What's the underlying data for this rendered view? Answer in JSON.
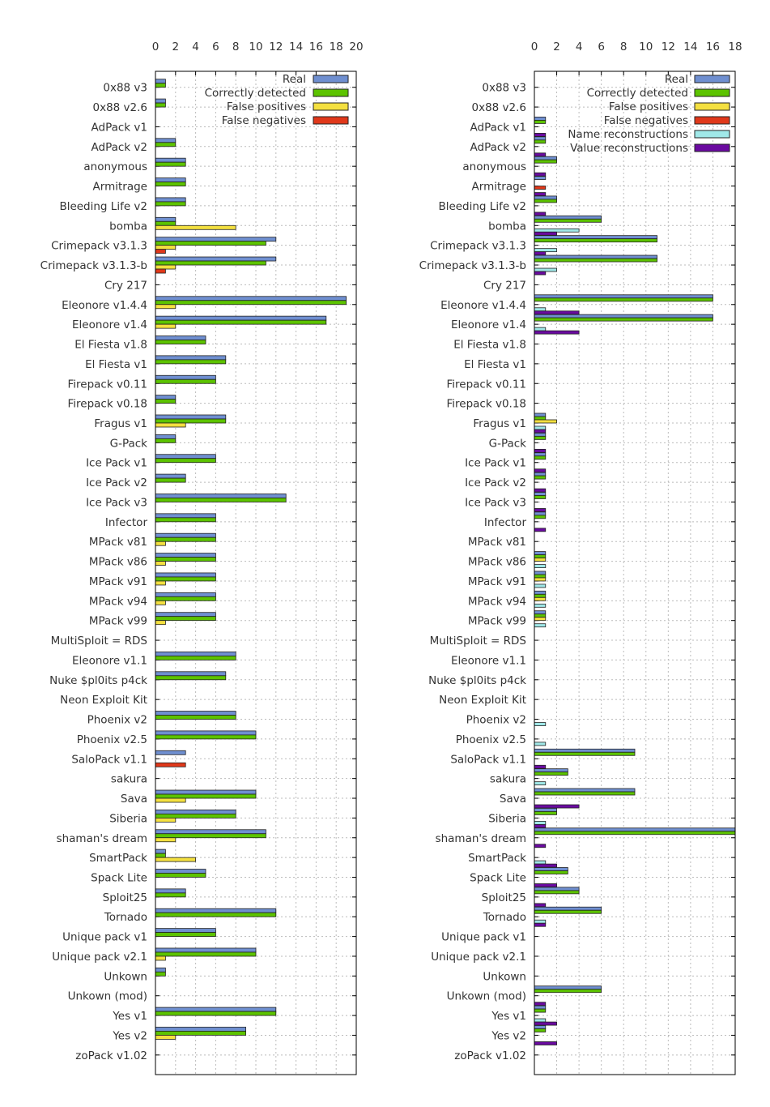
{
  "colors": {
    "real": "#6f8fd0",
    "correct": "#5cc300",
    "false_positive": "#f4e040",
    "false_negative": "#e0381a",
    "name_reconstruction": "#a0e8e8",
    "value_reconstruction": "#6a0aa0"
  },
  "chart_data": [
    {
      "type": "bar",
      "orientation": "horizontal",
      "xlim": [
        0,
        20
      ],
      "xticks": [
        "0",
        "2",
        "4",
        "6",
        "8",
        "10",
        "12",
        "14",
        "16",
        "18",
        "20"
      ],
      "grid": true,
      "legend_position": "top-right",
      "categories": [
        "0x88 v3",
        "0x88 v2.6",
        "AdPack v1",
        "AdPack v2",
        "anonymous",
        "Armitrage",
        "Bleeding Life v2",
        "bomba",
        "Crimepack v3.1.3",
        "Crimepack v3.1.3-b",
        "Cry 217",
        "Eleonore v1.4.4",
        "Eleonore v1.4",
        "El Fiesta v1.8",
        "El Fiesta v1",
        "Firepack v0.11",
        "Firepack v0.18",
        "Fragus v1",
        "G-Pack",
        "Ice Pack v1",
        "Ice Pack v2",
        "Ice Pack v3",
        "Infector",
        "MPack v81",
        "MPack v86",
        "MPack v91",
        "MPack v94",
        "MPack v99",
        "MultiSploit = RDS",
        "Eleonore v1.1",
        "Nuke $pl0its p4ck",
        "Neon Exploit Kit",
        "Phoenix v2",
        "Phoenix v2.5",
        "SaloPack v1.1",
        "sakura",
        "Sava",
        "Siberia",
        "shaman's dream",
        "SmartPack",
        "Spack Lite",
        "Sploit25",
        "Tornado",
        "Unique pack v1",
        "Unique pack  v2.1",
        "Unkown",
        "Unkown (mod)",
        "Yes v1",
        "Yes v2",
        "zoPack v1.02"
      ],
      "series": [
        {
          "name": "Real",
          "color_key": "real",
          "values": [
            1,
            1,
            0,
            2,
            3,
            3,
            3,
            2,
            12,
            12,
            0,
            19,
            17,
            5,
            7,
            6,
            2,
            7,
            2,
            6,
            3,
            13,
            6,
            6,
            6,
            6,
            6,
            6,
            0,
            8,
            7,
            0,
            8,
            10,
            3,
            0,
            10,
            8,
            11,
            1,
            5,
            3,
            12,
            6,
            10,
            1,
            0,
            12,
            9,
            0
          ]
        },
        {
          "name": "Correctly detected",
          "color_key": "correct",
          "values": [
            1,
            1,
            0,
            2,
            3,
            3,
            3,
            2,
            11,
            11,
            0,
            19,
            17,
            5,
            7,
            6,
            2,
            7,
            2,
            6,
            3,
            13,
            6,
            6,
            6,
            6,
            6,
            6,
            0,
            8,
            7,
            0,
            8,
            10,
            0,
            0,
            10,
            8,
            11,
            1,
            5,
            3,
            12,
            6,
            10,
            1,
            0,
            12,
            9,
            0
          ]
        },
        {
          "name": "False positives",
          "color_key": "false_positive",
          "values": [
            0,
            0,
            0,
            0,
            0,
            0,
            0,
            8,
            2,
            2,
            0,
            2,
            2,
            0,
            0,
            0,
            0,
            3,
            0,
            0,
            0,
            0,
            0,
            1,
            1,
            1,
            1,
            1,
            0,
            0,
            0,
            0,
            0,
            0,
            0,
            0,
            3,
            2,
            2,
            4,
            0,
            0,
            0,
            0,
            1,
            0,
            0,
            0,
            2,
            0
          ]
        },
        {
          "name": "False negatives",
          "color_key": "false_negative",
          "values": [
            0,
            0,
            0,
            0,
            0,
            0,
            0,
            0,
            1,
            1,
            0,
            0,
            0,
            0,
            0,
            0,
            0,
            0,
            0,
            0,
            0,
            0,
            0,
            0,
            0,
            0,
            0,
            0,
            0,
            0,
            0,
            0,
            0,
            0,
            3,
            0,
            0,
            0,
            0,
            0,
            0,
            0,
            0,
            0,
            0,
            0,
            0,
            0,
            0,
            0
          ]
        }
      ]
    },
    {
      "type": "bar",
      "orientation": "horizontal",
      "xlim": [
        0,
        18
      ],
      "xticks": [
        "0",
        "2",
        "4",
        "6",
        "8",
        "10",
        "12",
        "14",
        "16",
        "18"
      ],
      "grid": true,
      "legend_position": "top-right",
      "categories": [
        "0x88 v3",
        "0x88 v2.6",
        "AdPack v1",
        "AdPack v2",
        "anonymous",
        "Armitrage",
        "Bleeding Life v2",
        "bomba",
        "Crimepack v3.1.3",
        "Crimepack v3.1.3-b",
        "Cry 217",
        "Eleonore v1.4.4",
        "Eleonore v1.4",
        "El Fiesta v1.8",
        "El Fiesta v1",
        "Firepack v0.11",
        "Firepack v0.18",
        "Fragus v1",
        "G-Pack",
        "Ice Pack v1",
        "Ice Pack v2",
        "Ice Pack v3",
        "Infector",
        "MPack v81",
        "MPack v86",
        "MPack v91",
        "MPack v94",
        "MPack v99",
        "MultiSploit = RDS",
        "Eleonore v1.1",
        "Nuke $pl0its p4ck",
        "Neon Exploit Kit",
        "Phoenix v2",
        "Phoenix v2.5",
        "SaloPack v1.1",
        "sakura",
        "Sava",
        "Siberia",
        "shaman's dream",
        "SmartPack",
        "Spack Lite",
        "Sploit25",
        "Tornado",
        "Unique pack v1",
        "Unique pack  v2.1",
        "Unkown",
        "Unkown (mod)",
        "Yes v1",
        "Yes v2",
        "zoPack v1.02"
      ],
      "series": [
        {
          "name": "Real",
          "color_key": "real",
          "values": [
            0,
            0,
            1,
            1,
            2,
            1,
            2,
            6,
            11,
            11,
            0,
            16,
            16,
            0,
            0,
            0,
            0,
            1,
            1,
            1,
            1,
            1,
            1,
            0,
            1,
            1,
            1,
            1,
            0,
            0,
            0,
            0,
            0,
            0,
            9,
            3,
            9,
            2,
            18,
            0,
            3,
            4,
            6,
            0,
            0,
            0,
            6,
            1,
            1,
            0
          ]
        },
        {
          "name": "Correctly detected",
          "color_key": "correct",
          "values": [
            0,
            0,
            1,
            1,
            2,
            0,
            2,
            6,
            11,
            11,
            0,
            16,
            16,
            0,
            0,
            0,
            0,
            1,
            1,
            1,
            1,
            1,
            1,
            0,
            1,
            1,
            1,
            1,
            0,
            0,
            0,
            0,
            0,
            0,
            9,
            3,
            9,
            2,
            18,
            0,
            3,
            4,
            6,
            0,
            0,
            0,
            6,
            1,
            1,
            0
          ]
        },
        {
          "name": "False positives",
          "color_key": "false_positive",
          "values": [
            0,
            0,
            0,
            0,
            0,
            0,
            0,
            0,
            0,
            0,
            0,
            0,
            0,
            0,
            0,
            0,
            0,
            2,
            0,
            0,
            0,
            0,
            0,
            0,
            1,
            1,
            1,
            1,
            0,
            0,
            0,
            0,
            0,
            0,
            0,
            0,
            0,
            0,
            0,
            0,
            0,
            0,
            0,
            0,
            0,
            0,
            0,
            0,
            0,
            0
          ]
        },
        {
          "name": "False negatives",
          "color_key": "false_negative",
          "values": [
            0,
            0,
            0,
            0,
            0,
            1,
            0,
            0,
            0,
            0,
            0,
            0,
            0,
            0,
            0,
            0,
            0,
            0,
            0,
            0,
            0,
            0,
            0,
            0,
            0,
            0,
            0,
            0,
            0,
            0,
            0,
            0,
            0,
            0,
            0,
            0,
            0,
            0,
            0,
            0,
            0,
            0,
            0,
            0,
            0,
            0,
            0,
            0,
            0,
            0
          ]
        },
        {
          "name": "Name reconstructions",
          "color_key": "name_reconstruction",
          "values": [
            0,
            0,
            0,
            0,
            0,
            0,
            0,
            4,
            2,
            2,
            0,
            1,
            1,
            0,
            0,
            0,
            0,
            1,
            0,
            0,
            0,
            0,
            0,
            0,
            1,
            1,
            1,
            1,
            0,
            0,
            0,
            0,
            1,
            1,
            0,
            1,
            0,
            1,
            0,
            1,
            0,
            0,
            1,
            0,
            0,
            0,
            0,
            1,
            0,
            0
          ]
        },
        {
          "name": "Value reconstructions",
          "color_key": "value_reconstruction",
          "values": [
            0,
            0,
            1,
            1,
            1,
            1,
            1,
            2,
            1,
            1,
            0,
            4,
            4,
            0,
            0,
            0,
            0,
            1,
            1,
            1,
            1,
            1,
            1,
            0,
            0,
            0,
            0,
            0,
            0,
            0,
            0,
            0,
            0,
            0,
            1,
            0,
            4,
            1,
            1,
            2,
            2,
            1,
            1,
            0,
            0,
            0,
            1,
            2,
            2,
            0
          ]
        }
      ]
    }
  ]
}
